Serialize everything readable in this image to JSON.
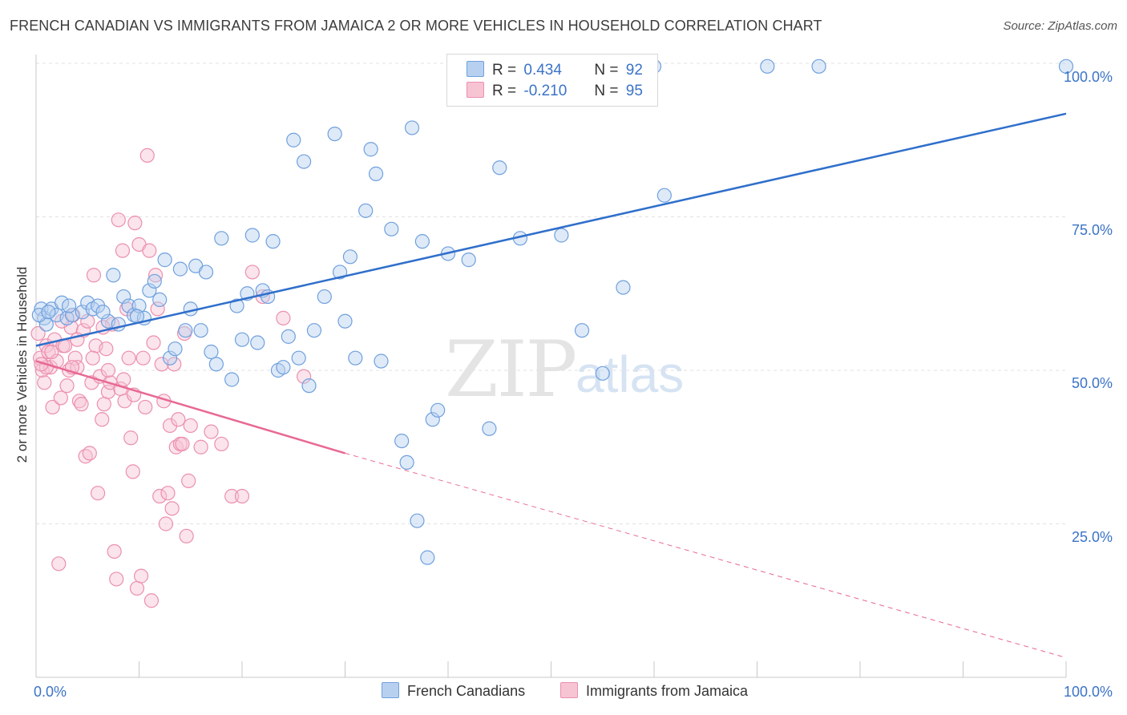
{
  "header": {
    "title": "FRENCH CANADIAN VS IMMIGRANTS FROM JAMAICA 2 OR MORE VEHICLES IN HOUSEHOLD CORRELATION CHART",
    "source": "Source: ZipAtlas.com"
  },
  "watermark": {
    "zip": "ZIP",
    "atlas": "atlas"
  },
  "legend_top": [
    {
      "r_label": "R =",
      "r_value": "0.434",
      "n_label": "N =",
      "n_value": "92"
    },
    {
      "r_label": "R =",
      "r_value": "-0.210",
      "n_label": "N =",
      "n_value": "95"
    }
  ],
  "legend_bottom": [
    {
      "label": "French Canadians"
    },
    {
      "label": "Immigrants from Jamaica"
    }
  ],
  "x_tick_labels": {
    "left": "0.0%",
    "right": "100.0%"
  },
  "y_tick_labels": [
    "100.0%",
    "75.0%",
    "50.0%",
    "25.0%"
  ],
  "colors": {
    "blue_fill": "#b8d0f0",
    "blue_stroke": "#6fa0de",
    "blue_line": "#2f6fcb",
    "pink_fill": "#f7c4d4",
    "pink_stroke": "#ec8fae",
    "pink_line": "#e86993",
    "tick_text": "#3b73c7",
    "grid": "#e2e2e2"
  },
  "chart_data": {
    "type": "scatter",
    "title": "FRENCH CANADIAN VS IMMIGRANTS FROM JAMAICA 2 OR MORE VEHICLES IN HOUSEHOLD CORRELATION CHART",
    "xlabel": "",
    "ylabel": "2 or more Vehicles in Household",
    "xlim": [
      0,
      100
    ],
    "ylim": [
      0,
      100
    ],
    "y_ticks": [
      25,
      50,
      75,
      100
    ],
    "grid": true,
    "legend_position": "top-center",
    "series": [
      {
        "name": "French Canadians",
        "r": 0.434,
        "n": 92,
        "trend": {
          "x": [
            0,
            100
          ],
          "y": [
            54,
            91.8
          ],
          "style": "solid"
        },
        "points": [
          [
            0.5,
            60
          ],
          [
            0.8,
            58.5
          ],
          [
            1.0,
            57.5
          ],
          [
            1.5,
            60
          ],
          [
            2.0,
            59
          ],
          [
            2.5,
            61
          ],
          [
            3.0,
            58.5
          ],
          [
            3.5,
            59
          ],
          [
            4.5,
            59.5
          ],
          [
            5.0,
            61
          ],
          [
            5.5,
            60
          ],
          [
            6.0,
            60.5
          ],
          [
            7.0,
            58
          ],
          [
            7.5,
            65.5
          ],
          [
            8.0,
            57.5
          ],
          [
            8.5,
            62
          ],
          [
            9.0,
            60.5
          ],
          [
            9.5,
            59
          ],
          [
            10.0,
            60.5
          ],
          [
            10.5,
            58.5
          ],
          [
            11.0,
            63
          ],
          [
            12.0,
            61.5
          ],
          [
            12.5,
            68
          ],
          [
            13.0,
            52
          ],
          [
            13.5,
            53.5
          ],
          [
            14.0,
            66.5
          ],
          [
            14.5,
            56.5
          ],
          [
            15.0,
            60
          ],
          [
            15.5,
            67
          ],
          [
            16.0,
            56.5
          ],
          [
            16.5,
            66
          ],
          [
            17.0,
            53
          ],
          [
            17.5,
            51
          ],
          [
            18.0,
            71.5
          ],
          [
            19.0,
            48.5
          ],
          [
            19.5,
            60.5
          ],
          [
            20.0,
            55
          ],
          [
            20.5,
            62.5
          ],
          [
            21.0,
            72
          ],
          [
            21.5,
            54.5
          ],
          [
            22.0,
            63
          ],
          [
            22.5,
            62
          ],
          [
            23.0,
            71
          ],
          [
            23.5,
            50
          ],
          [
            24.0,
            50.5
          ],
          [
            24.5,
            55.5
          ],
          [
            25.0,
            87.5
          ],
          [
            25.5,
            52
          ],
          [
            26.0,
            84
          ],
          [
            26.5,
            47.5
          ],
          [
            27.0,
            56.5
          ],
          [
            28.0,
            62
          ],
          [
            29.0,
            88.5
          ],
          [
            29.5,
            66
          ],
          [
            30.0,
            58
          ],
          [
            30.5,
            68.5
          ],
          [
            31.0,
            52
          ],
          [
            32.0,
            76
          ],
          [
            32.5,
            86
          ],
          [
            33.0,
            82
          ],
          [
            33.5,
            51.5
          ],
          [
            34.5,
            73
          ],
          [
            35.5,
            38.5
          ],
          [
            36.0,
            35
          ],
          [
            36.5,
            89.5
          ],
          [
            37.0,
            25.5
          ],
          [
            37.5,
            71
          ],
          [
            38.0,
            19.5
          ],
          [
            38.5,
            42
          ],
          [
            39.0,
            43.5
          ],
          [
            40.0,
            69
          ],
          [
            42.0,
            68
          ],
          [
            44.0,
            40.5
          ],
          [
            45.0,
            83
          ],
          [
            46.0,
            99.5
          ],
          [
            47.0,
            71.5
          ],
          [
            50.0,
            99.5
          ],
          [
            51.0,
            72
          ],
          [
            53.0,
            56.5
          ],
          [
            55.0,
            49.5
          ],
          [
            57.0,
            63.5
          ],
          [
            60.0,
            99.5
          ],
          [
            61.0,
            78.5
          ],
          [
            71.0,
            99.5
          ],
          [
            76.0,
            99.5
          ],
          [
            100.0,
            99.5
          ],
          [
            0.3,
            59
          ],
          [
            1.2,
            59.5
          ],
          [
            3.2,
            60.5
          ],
          [
            6.5,
            59.5
          ],
          [
            9.8,
            58.8
          ],
          [
            11.5,
            64.5
          ]
        ]
      },
      {
        "name": "Immigrants from Jamaica",
        "r": -0.21,
        "n": 95,
        "trend": {
          "x": [
            0,
            30,
            100
          ],
          "y": [
            51.5,
            36.5,
            3.2
          ],
          "style": "solid-then-dashed",
          "solid_until_x": 30
        },
        "points": [
          [
            0.2,
            56
          ],
          [
            0.4,
            52
          ],
          [
            0.6,
            50
          ],
          [
            0.8,
            48
          ],
          [
            1.0,
            54
          ],
          [
            1.2,
            53
          ],
          [
            1.4,
            50.5
          ],
          [
            1.6,
            44
          ],
          [
            1.8,
            55
          ],
          [
            2.0,
            51.5
          ],
          [
            2.2,
            18.5
          ],
          [
            2.4,
            45.5
          ],
          [
            2.6,
            54
          ],
          [
            2.8,
            54
          ],
          [
            3.0,
            47.5
          ],
          [
            3.2,
            50
          ],
          [
            3.4,
            57
          ],
          [
            3.6,
            59
          ],
          [
            3.8,
            52
          ],
          [
            4.0,
            50.5
          ],
          [
            4.2,
            45
          ],
          [
            4.4,
            44.5
          ],
          [
            4.6,
            56.5
          ],
          [
            4.8,
            36
          ],
          [
            5.0,
            58
          ],
          [
            5.2,
            36.5
          ],
          [
            5.4,
            48
          ],
          [
            5.6,
            65.5
          ],
          [
            5.8,
            54
          ],
          [
            6.0,
            30
          ],
          [
            6.2,
            49
          ],
          [
            6.4,
            42
          ],
          [
            6.6,
            44.5
          ],
          [
            6.8,
            53.5
          ],
          [
            7.0,
            46.5
          ],
          [
            7.2,
            48
          ],
          [
            7.4,
            57.5
          ],
          [
            7.6,
            20.5
          ],
          [
            7.8,
            16
          ],
          [
            8.0,
            74.5
          ],
          [
            8.2,
            47
          ],
          [
            8.4,
            69.5
          ],
          [
            8.6,
            45
          ],
          [
            8.8,
            60
          ],
          [
            9.0,
            52
          ],
          [
            9.2,
            39
          ],
          [
            9.4,
            33.5
          ],
          [
            9.6,
            74
          ],
          [
            9.8,
            14.5
          ],
          [
            10.0,
            70.5
          ],
          [
            10.2,
            16.5
          ],
          [
            10.4,
            52
          ],
          [
            10.6,
            44
          ],
          [
            10.8,
            85
          ],
          [
            11.0,
            69.5
          ],
          [
            11.2,
            12.5
          ],
          [
            11.4,
            54.5
          ],
          [
            11.6,
            65.5
          ],
          [
            11.8,
            60
          ],
          [
            12.0,
            29.5
          ],
          [
            12.2,
            51
          ],
          [
            12.4,
            45
          ],
          [
            12.6,
            25
          ],
          [
            12.8,
            30
          ],
          [
            13.0,
            41
          ],
          [
            13.2,
            27.5
          ],
          [
            13.4,
            51
          ],
          [
            13.6,
            37.5
          ],
          [
            13.8,
            42
          ],
          [
            14.0,
            38
          ],
          [
            14.2,
            38
          ],
          [
            14.4,
            56
          ],
          [
            14.6,
            23
          ],
          [
            14.8,
            32
          ],
          [
            15.0,
            41
          ],
          [
            16.0,
            37.5
          ],
          [
            17.0,
            40
          ],
          [
            18.0,
            38
          ],
          [
            19.0,
            29.5
          ],
          [
            20.0,
            29.5
          ],
          [
            21.0,
            66
          ],
          [
            22.0,
            62
          ],
          [
            24.0,
            58.5
          ],
          [
            26.0,
            49
          ],
          [
            1.0,
            50.5
          ],
          [
            2.5,
            58
          ],
          [
            4.0,
            55
          ],
          [
            5.5,
            52
          ],
          [
            7.0,
            50
          ],
          [
            8.5,
            48.5
          ],
          [
            9.5,
            46
          ],
          [
            0.5,
            51
          ],
          [
            3.5,
            50.5
          ],
          [
            6.5,
            57
          ],
          [
            1.5,
            53
          ]
        ]
      }
    ]
  }
}
